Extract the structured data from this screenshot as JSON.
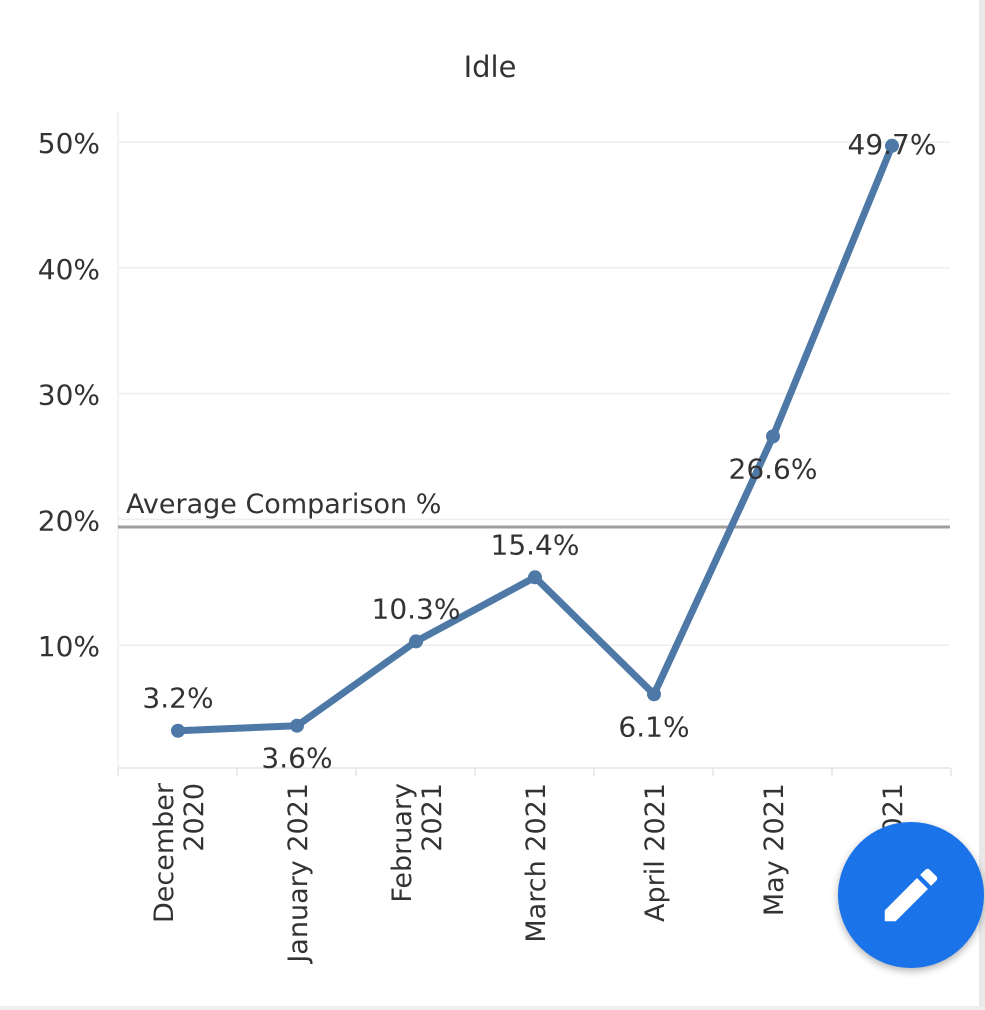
{
  "chart_data": {
    "type": "line",
    "title": "Idle",
    "categories": [
      "December 2020",
      "January 2021",
      "February 2021",
      "March 2021",
      "April 2021",
      "May 2021",
      "June 2021"
    ],
    "category_lines": [
      [
        "December",
        "2020"
      ],
      [
        "January 2021"
      ],
      [
        "February",
        "2021"
      ],
      [
        "March 2021"
      ],
      [
        "April 2021"
      ],
      [
        "May 2021"
      ],
      [
        "2021"
      ]
    ],
    "series": [
      {
        "values": [
          3.2,
          3.6,
          10.3,
          15.4,
          6.1,
          26.6,
          49.7
        ],
        "color": "#4e79a7"
      }
    ],
    "data_labels": [
      "3.2%",
      "3.6%",
      "10.3%",
      "15.4%",
      "6.1%",
      "26.6%",
      "49.7%"
    ],
    "reference_line": {
      "label": "Average Comparison %",
      "value": 19.4,
      "color": "#9e9e9e"
    },
    "yticks": [
      10,
      20,
      30,
      40,
      50
    ],
    "ytick_labels": [
      "10%",
      "20%",
      "30%",
      "40%",
      "50%"
    ],
    "ylim": [
      0,
      52
    ],
    "xlabel": "",
    "ylabel": "",
    "grid": true
  },
  "fab": {
    "icon": "pencil-icon",
    "color": "#1a73e8"
  }
}
